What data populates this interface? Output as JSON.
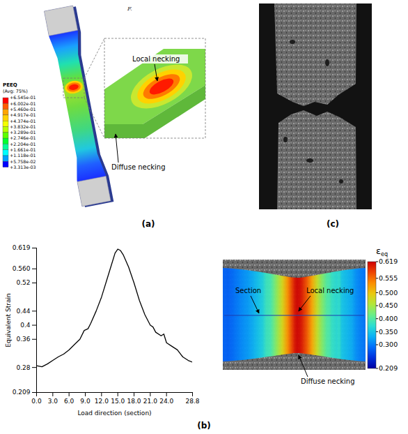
{
  "chart_data": {
    "type": "line",
    "x_label": "Load direction (section)",
    "y_label": "Equivalent Strain",
    "x": [
      0,
      1,
      2,
      3,
      4,
      5,
      6,
      7,
      8,
      8.8,
      9.5,
      10,
      11,
      12,
      13,
      14,
      14.5,
      15,
      15.5,
      16,
      17,
      18,
      19,
      20,
      21,
      21.5,
      22,
      23,
      23.5,
      24,
      25,
      26,
      27,
      28,
      28.8
    ],
    "values": [
      0.285,
      0.282,
      0.29,
      0.3,
      0.31,
      0.318,
      0.33,
      0.345,
      0.36,
      0.385,
      0.39,
      0.405,
      0.44,
      0.48,
      0.53,
      0.58,
      0.605,
      0.616,
      0.612,
      0.6,
      0.565,
      0.52,
      0.47,
      0.43,
      0.4,
      0.395,
      0.38,
      0.37,
      0.375,
      0.35,
      0.34,
      0.33,
      0.31,
      0.3,
      0.295
    ],
    "color": "#000000",
    "xlim": [
      0,
      28.8
    ],
    "xticks": [
      {
        "value": 0,
        "label": "0.0"
      },
      {
        "value": 3,
        "label": "3.0"
      },
      {
        "value": 6,
        "label": "6.0"
      },
      {
        "value": 9,
        "label": "9.0"
      },
      {
        "value": 12,
        "label": "12.0"
      },
      {
        "value": 15,
        "label": "15.0"
      },
      {
        "value": 18,
        "label": "18.0"
      },
      {
        "value": 21,
        "label": "21.0"
      },
      {
        "value": 24,
        "label": "24.0"
      },
      28.8
    ],
    "ylim": [
      0.209,
      0.619
    ],
    "yticks": [
      0.209,
      0.28,
      0.36,
      0.4,
      0.44,
      0.52,
      {
        "value": 0.56,
        "label": "0.560"
      },
      0.619
    ],
    "grid": false
  },
  "header_text": "F.",
  "panels": {
    "a": {
      "label": "(a)",
      "legend": {
        "title": "PEEQ",
        "subtitle": "(Avg: 75%)",
        "levels": [
          {
            "value": 0.6545,
            "label": "+6.545e-01"
          },
          {
            "value": 0.6002,
            "label": "+6.002e-01"
          },
          {
            "value": 0.546,
            "label": "+5.460e-01"
          },
          {
            "value": 0.4917,
            "label": "+4.917e-01"
          },
          {
            "value": 0.4374,
            "label": "+4.374e-01"
          },
          {
            "value": 0.3832,
            "label": "+3.832e-01"
          },
          {
            "value": 0.3289,
            "label": "+3.289e-01"
          },
          {
            "value": 0.2746,
            "label": "+2.746e-01"
          },
          {
            "value": 0.2204,
            "label": "+2.204e-01"
          },
          {
            "value": 0.1661,
            "label": "+1.661e-01"
          },
          {
            "value": 0.1118,
            "label": "+1.118e-01"
          },
          {
            "value": 0.05758,
            "label": "+5.758e-02"
          },
          {
            "value": 0.003313,
            "label": "+3.313e-03"
          }
        ]
      },
      "annotations": {
        "local": "Local necking",
        "diffuse": "Diffuse necking"
      }
    },
    "b": {
      "label": "(b)",
      "colorbar": {
        "title": "ε",
        "title_subscript": "eq",
        "range": [
          0.209,
          0.619
        ],
        "ticks": [
          0.619,
          0.555,
          {
            "value": 0.5,
            "label": "0.500"
          },
          {
            "value": 0.45,
            "label": "0.450"
          },
          {
            "value": 0.4,
            "label": "0.400"
          },
          {
            "value": 0.35,
            "label": "0.350"
          },
          {
            "value": 0.3,
            "label": "0.300"
          },
          0.209
        ]
      },
      "annotations": {
        "section": "Section",
        "local": "Local necking",
        "diffuse": "Diffuse necking"
      }
    },
    "c": {
      "label": "(c)"
    }
  }
}
